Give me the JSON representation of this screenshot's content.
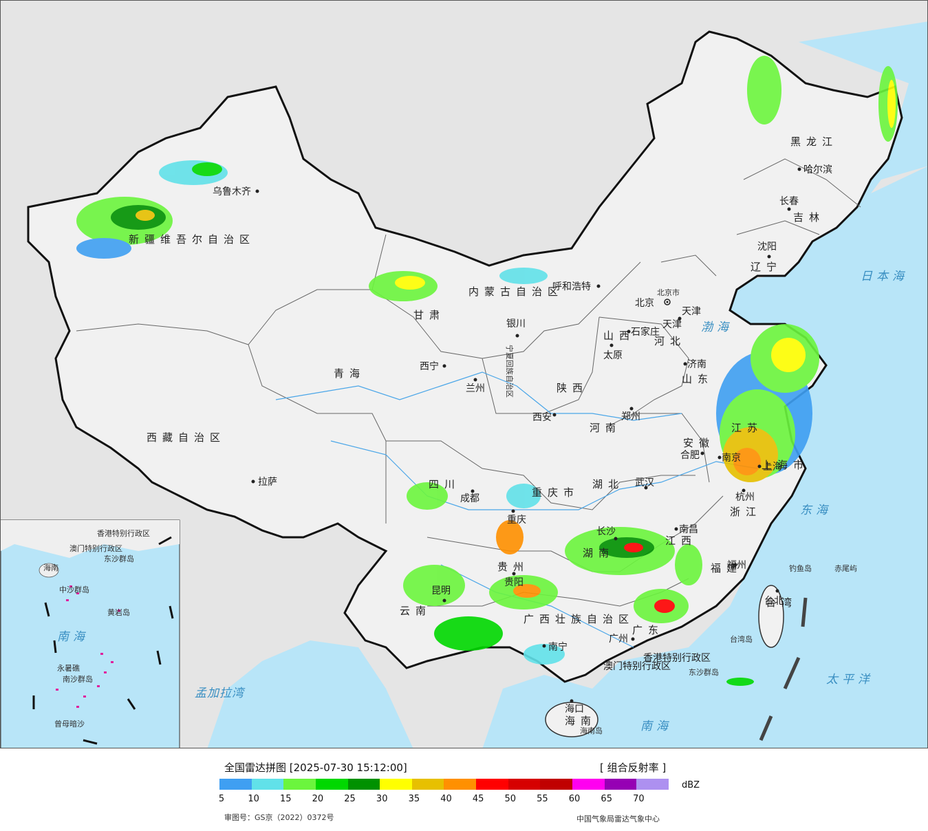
{
  "legend": {
    "title": "全国雷达拼图 [2025-07-30 15:12:00]",
    "product": "[ 组合反射率 ]",
    "unit": "dBZ",
    "colors": [
      "#3f9ff2",
      "#61e1e9",
      "#6bf53d",
      "#00d800",
      "#009100",
      "#ffff00",
      "#e7c000",
      "#ff9000",
      "#ff0000",
      "#d60000",
      "#c00000",
      "#ff00f0",
      "#9600b4",
      "#ad90f0"
    ],
    "ticks": [
      "5",
      "10",
      "15",
      "20",
      "25",
      "30",
      "35",
      "40",
      "45",
      "50",
      "55",
      "60",
      "65",
      "70"
    ]
  },
  "footer": {
    "approval": "审图号：GS京（2022）0372号",
    "source": "中国气象局雷达气象中心"
  },
  "map": {
    "land_color": "#f1f1f1",
    "sea_color": "#b7e4f7",
    "foreign_color": "#e4e4e4",
    "border_color": "#111111",
    "provinces": [
      "新疆维吾尔自治区",
      "西藏自治区",
      "青海",
      "甘肃",
      "内蒙古自治区",
      "黑龙江",
      "吉林",
      "辽宁",
      "河北",
      "山西",
      "陕西",
      "宁夏回族自治区",
      "四川",
      "重庆市",
      "贵州",
      "云南",
      "广西壮族自治区",
      "广东",
      "湖南",
      "湖北",
      "河南",
      "山东",
      "江苏",
      "安徽",
      "浙江",
      "江西",
      "福建",
      "海南",
      "上海市",
      "北京市",
      "天津",
      "台湾",
      "香港特别行政区",
      "澳门特别行政区"
    ],
    "cities": [
      "乌鲁木齐",
      "拉萨",
      "西宁",
      "兰州",
      "银川",
      "呼和浩特",
      "北京",
      "天津",
      "石家庄",
      "太原",
      "济南",
      "郑州",
      "西安",
      "成都",
      "重庆",
      "贵阳",
      "昆明",
      "南宁",
      "广州",
      "长沙",
      "武汉",
      "合肥",
      "南京",
      "上海",
      "杭州",
      "南昌",
      "福州",
      "台北",
      "海口",
      "哈尔滨",
      "长春",
      "沈阳"
    ],
    "seas": [
      "日本海",
      "渤海",
      "东海",
      "太平洋",
      "南海",
      "孟加拉湾"
    ],
    "islands": [
      "钓鱼岛",
      "赤尾屿",
      "台湾岛",
      "东沙群岛",
      "海南岛",
      "中沙群岛",
      "黄岩岛",
      "永暑礁",
      "南沙群岛",
      "曾母暗沙"
    ],
    "inset_labels": [
      "海南",
      "南海",
      "香港特别行政区",
      "澳门特别行政区",
      "东沙群岛",
      "中沙群岛",
      "黄岩岛",
      "南沙群岛",
      "曾母暗沙",
      "永暑礁"
    ]
  }
}
